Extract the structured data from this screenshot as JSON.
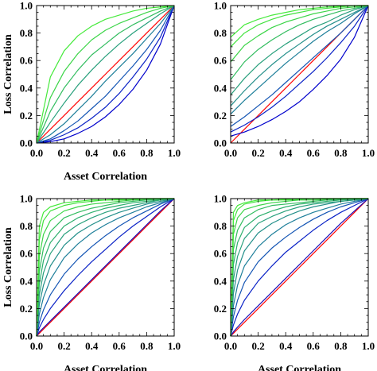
{
  "chart_data": [
    {
      "type": "line",
      "xlabel": "Asset Correlation",
      "ylabel": "Loss Correlation",
      "xlim": [
        0,
        1
      ],
      "ylim": [
        0,
        1
      ],
      "xticks": [
        "0.0",
        "0.2",
        "0.4",
        "0.6",
        "0.8",
        "1.0"
      ],
      "yticks": [
        "0.0",
        "0.2",
        "0.4",
        "0.6",
        "0.8",
        "1.0"
      ],
      "x": [
        0,
        0.1,
        0.2,
        0.3,
        0.4,
        0.5,
        0.6,
        0.7,
        0.8,
        0.9,
        1.0
      ],
      "series": [
        {
          "color": "#ff0000",
          "values": [
            0,
            0.1,
            0.2,
            0.3,
            0.4,
            0.5,
            0.6,
            0.7,
            0.8,
            0.9,
            1.0
          ]
        },
        {
          "color": "#0000cc",
          "values": [
            0,
            0.01,
            0.03,
            0.07,
            0.12,
            0.19,
            0.28,
            0.39,
            0.53,
            0.72,
            1.0
          ]
        },
        {
          "color": "#0a22c6",
          "values": [
            0,
            0.02,
            0.06,
            0.11,
            0.18,
            0.26,
            0.36,
            0.48,
            0.61,
            0.77,
            1.0
          ]
        },
        {
          "color": "#1455b4",
          "values": [
            0,
            0.03,
            0.09,
            0.16,
            0.25,
            0.34,
            0.45,
            0.56,
            0.68,
            0.82,
            1.0
          ]
        },
        {
          "color": "#1e7f9a",
          "values": [
            0,
            0.06,
            0.14,
            0.24,
            0.34,
            0.45,
            0.55,
            0.65,
            0.76,
            0.87,
            1.0
          ]
        },
        {
          "color": "#28a07c",
          "values": [
            0,
            0.15,
            0.29,
            0.42,
            0.53,
            0.63,
            0.72,
            0.8,
            0.87,
            0.94,
            1.0
          ]
        },
        {
          "color": "#32bd5f",
          "values": [
            0,
            0.23,
            0.4,
            0.53,
            0.64,
            0.72,
            0.8,
            0.86,
            0.91,
            0.96,
            1.0
          ]
        },
        {
          "color": "#3cd548",
          "values": [
            0,
            0.33,
            0.52,
            0.65,
            0.75,
            0.82,
            0.87,
            0.91,
            0.95,
            0.98,
            1.0
          ]
        },
        {
          "color": "#46ea3c",
          "values": [
            0,
            0.48,
            0.67,
            0.78,
            0.85,
            0.9,
            0.93,
            0.96,
            0.98,
            0.99,
            1.0
          ]
        }
      ]
    },
    {
      "type": "line",
      "xlabel": "",
      "ylabel": "",
      "xlim": [
        0,
        1
      ],
      "ylim": [
        0,
        1
      ],
      "xticks": [
        "0.0",
        "0.2",
        "0.4",
        "0.6",
        "0.8",
        "1.0"
      ],
      "yticks": [
        "0.0",
        "0.2",
        "0.4",
        "0.6",
        "0.8",
        "1.0"
      ],
      "x": [
        0,
        0.1,
        0.2,
        0.3,
        0.4,
        0.5,
        0.6,
        0.7,
        0.8,
        0.9,
        1.0
      ],
      "series": [
        {
          "color": "#ff0000",
          "values": [
            0,
            0.1,
            0.2,
            0.3,
            0.4,
            0.5,
            0.6,
            0.7,
            0.8,
            0.9,
            1.0
          ]
        },
        {
          "color": "#0000cc",
          "values": [
            0.05,
            0.08,
            0.12,
            0.17,
            0.23,
            0.3,
            0.39,
            0.49,
            0.61,
            0.77,
            1.0
          ]
        },
        {
          "color": "#0a22c6",
          "values": [
            0.08,
            0.13,
            0.19,
            0.26,
            0.34,
            0.43,
            0.52,
            0.62,
            0.73,
            0.85,
            1.0
          ]
        },
        {
          "color": "#1455b4",
          "values": [
            0.12,
            0.19,
            0.27,
            0.35,
            0.44,
            0.53,
            0.62,
            0.71,
            0.8,
            0.9,
            1.0
          ]
        },
        {
          "color": "#1e7f9a",
          "values": [
            0.21,
            0.31,
            0.4,
            0.49,
            0.58,
            0.66,
            0.74,
            0.81,
            0.87,
            0.94,
            1.0
          ]
        },
        {
          "color": "#238f8a",
          "values": [
            0.27,
            0.38,
            0.48,
            0.57,
            0.65,
            0.72,
            0.79,
            0.85,
            0.9,
            0.95,
            1.0
          ]
        },
        {
          "color": "#28a07c",
          "values": [
            0.35,
            0.47,
            0.57,
            0.65,
            0.72,
            0.78,
            0.84,
            0.88,
            0.93,
            0.97,
            1.0
          ]
        },
        {
          "color": "#32bd5f",
          "values": [
            0.46,
            0.59,
            0.68,
            0.75,
            0.81,
            0.86,
            0.9,
            0.93,
            0.96,
            0.98,
            1.0
          ]
        },
        {
          "color": "#3cd548",
          "values": [
            0.59,
            0.71,
            0.78,
            0.84,
            0.88,
            0.91,
            0.94,
            0.96,
            0.98,
            0.99,
            1.0
          ]
        },
        {
          "color": "#43e23f",
          "values": [
            0.7,
            0.8,
            0.86,
            0.9,
            0.93,
            0.95,
            0.97,
            0.98,
            0.99,
            1.0,
            1.0
          ]
        },
        {
          "color": "#46ea3c",
          "values": [
            0.77,
            0.86,
            0.9,
            0.93,
            0.95,
            0.97,
            0.98,
            0.99,
            0.995,
            1.0,
            1.0
          ]
        }
      ]
    },
    {
      "type": "line",
      "xlabel": "Asset Correlation",
      "ylabel": "Loss Correlation",
      "xlim": [
        0,
        1
      ],
      "ylim": [
        0,
        1
      ],
      "xticks": [
        "0.0",
        "0.2",
        "0.4",
        "0.6",
        "0.8",
        "1.0"
      ],
      "yticks": [
        "0.0",
        "0.2",
        "0.4",
        "0.6",
        "0.8",
        "1.0"
      ],
      "x": [
        0,
        0.02,
        0.05,
        0.1,
        0.2,
        0.3,
        0.4,
        0.5,
        0.6,
        0.7,
        0.8,
        0.9,
        1.0
      ],
      "series": [
        {
          "color": "#ff0000",
          "values": [
            0,
            0.02,
            0.05,
            0.1,
            0.2,
            0.3,
            0.4,
            0.5,
            0.6,
            0.7,
            0.8,
            0.9,
            1.0
          ]
        },
        {
          "color": "#1a0fb8",
          "values": [
            0,
            0.03,
            0.06,
            0.11,
            0.21,
            0.31,
            0.41,
            0.51,
            0.61,
            0.71,
            0.81,
            0.91,
            1.0
          ]
        },
        {
          "color": "#0a22c6",
          "values": [
            0,
            0.06,
            0.12,
            0.2,
            0.33,
            0.44,
            0.54,
            0.63,
            0.72,
            0.8,
            0.87,
            0.94,
            1.0
          ]
        },
        {
          "color": "#1455b4",
          "values": [
            0,
            0.1,
            0.19,
            0.3,
            0.45,
            0.56,
            0.65,
            0.73,
            0.8,
            0.86,
            0.91,
            0.96,
            1.0
          ]
        },
        {
          "color": "#1e7f9a",
          "values": [
            0,
            0.16,
            0.28,
            0.41,
            0.57,
            0.67,
            0.75,
            0.81,
            0.86,
            0.9,
            0.94,
            0.97,
            1.0
          ]
        },
        {
          "color": "#238f8a",
          "values": [
            0,
            0.23,
            0.37,
            0.51,
            0.66,
            0.75,
            0.81,
            0.86,
            0.9,
            0.93,
            0.96,
            0.98,
            1.0
          ]
        },
        {
          "color": "#28a07c",
          "values": [
            0,
            0.3,
            0.46,
            0.6,
            0.74,
            0.81,
            0.86,
            0.9,
            0.93,
            0.95,
            0.97,
            0.99,
            1.0
          ]
        },
        {
          "color": "#2daf6d",
          "values": [
            0,
            0.38,
            0.55,
            0.68,
            0.8,
            0.86,
            0.9,
            0.93,
            0.95,
            0.97,
            0.98,
            0.99,
            1.0
          ]
        },
        {
          "color": "#32bd5f",
          "values": [
            0,
            0.47,
            0.64,
            0.76,
            0.86,
            0.9,
            0.93,
            0.95,
            0.97,
            0.98,
            0.99,
            0.995,
            1.0
          ]
        },
        {
          "color": "#3cd548",
          "values": [
            0,
            0.58,
            0.74,
            0.84,
            0.91,
            0.94,
            0.96,
            0.97,
            0.98,
            0.99,
            0.995,
            1.0,
            1.0
          ]
        },
        {
          "color": "#43e23f",
          "values": [
            0,
            0.7,
            0.84,
            0.91,
            0.95,
            0.97,
            0.98,
            0.99,
            0.99,
            0.995,
            1.0,
            1.0,
            1.0
          ]
        },
        {
          "color": "#46ea3c",
          "values": [
            0,
            0.8,
            0.9,
            0.94,
            0.97,
            0.98,
            0.99,
            0.99,
            0.995,
            1.0,
            1.0,
            1.0,
            1.0
          ]
        }
      ]
    },
    {
      "type": "line",
      "xlabel": "Asset Correlation",
      "ylabel": "",
      "xlim": [
        0,
        1
      ],
      "ylim": [
        0,
        1
      ],
      "xticks": [
        "0.0",
        "0.2",
        "0.4",
        "0.6",
        "0.8",
        "1.0"
      ],
      "yticks": [
        "0.0",
        "0.2",
        "0.4",
        "0.6",
        "0.8",
        "1.0"
      ],
      "x": [
        0,
        0.02,
        0.05,
        0.1,
        0.2,
        0.3,
        0.4,
        0.5,
        0.6,
        0.7,
        0.8,
        0.9,
        1.0
      ],
      "series": [
        {
          "color": "#ff0000",
          "values": [
            0,
            0.02,
            0.05,
            0.1,
            0.2,
            0.3,
            0.4,
            0.5,
            0.6,
            0.7,
            0.8,
            0.9,
            1.0
          ]
        },
        {
          "color": "#1a0fb8",
          "values": [
            0,
            0.03,
            0.065,
            0.12,
            0.22,
            0.32,
            0.42,
            0.52,
            0.62,
            0.72,
            0.82,
            0.91,
            1.0
          ]
        },
        {
          "color": "#0a22c6",
          "values": [
            0,
            0.08,
            0.16,
            0.26,
            0.4,
            0.51,
            0.61,
            0.69,
            0.77,
            0.84,
            0.9,
            0.95,
            1.0
          ]
        },
        {
          "color": "#1455b4",
          "values": [
            0,
            0.14,
            0.26,
            0.39,
            0.54,
            0.64,
            0.72,
            0.79,
            0.85,
            0.9,
            0.94,
            0.97,
            1.0
          ]
        },
        {
          "color": "#1e7f9a",
          "values": [
            0,
            0.22,
            0.37,
            0.51,
            0.65,
            0.74,
            0.81,
            0.86,
            0.9,
            0.93,
            0.96,
            0.98,
            1.0
          ]
        },
        {
          "color": "#238f8a",
          "values": [
            0,
            0.31,
            0.48,
            0.62,
            0.75,
            0.82,
            0.87,
            0.91,
            0.94,
            0.96,
            0.98,
            0.99,
            1.0
          ]
        },
        {
          "color": "#28a07c",
          "values": [
            0,
            0.41,
            0.58,
            0.71,
            0.82,
            0.87,
            0.91,
            0.94,
            0.96,
            0.97,
            0.98,
            0.99,
            1.0
          ]
        },
        {
          "color": "#2daf6d",
          "values": [
            0,
            0.52,
            0.68,
            0.79,
            0.87,
            0.91,
            0.94,
            0.96,
            0.97,
            0.98,
            0.99,
            0.995,
            1.0
          ]
        },
        {
          "color": "#32bd5f",
          "values": [
            0,
            0.63,
            0.77,
            0.86,
            0.92,
            0.95,
            0.96,
            0.97,
            0.98,
            0.99,
            0.995,
            1.0,
            1.0
          ]
        },
        {
          "color": "#3cd548",
          "values": [
            0,
            0.74,
            0.86,
            0.92,
            0.95,
            0.97,
            0.98,
            0.99,
            0.99,
            0.995,
            1.0,
            1.0,
            1.0
          ]
        },
        {
          "color": "#43e23f",
          "values": [
            0,
            0.84,
            0.92,
            0.96,
            0.98,
            0.99,
            0.99,
            0.995,
            1.0,
            1.0,
            1.0,
            1.0,
            1.0
          ]
        },
        {
          "color": "#46ea3c",
          "values": [
            0,
            0.9,
            0.95,
            0.97,
            0.99,
            0.99,
            0.995,
            1.0,
            1.0,
            1.0,
            1.0,
            1.0,
            1.0
          ]
        }
      ]
    }
  ]
}
